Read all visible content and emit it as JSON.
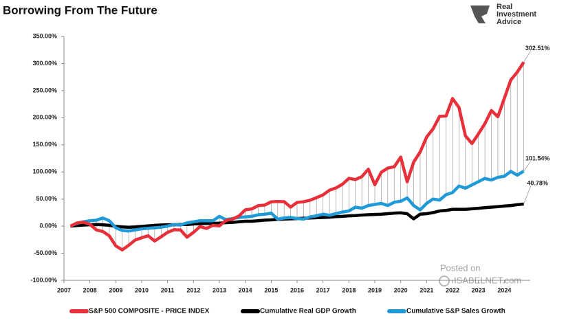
{
  "chart_data": {
    "type": "line",
    "title": "Borrowing From The Future",
    "logo_text": [
      "Real",
      "Investment",
      "Advice"
    ],
    "watermark": [
      "Posted on",
      "ISABELNET.com"
    ],
    "x": [
      2007.25,
      2007.5,
      2007.75,
      2008,
      2008.25,
      2008.5,
      2008.75,
      2009,
      2009.25,
      2009.5,
      2009.75,
      2010,
      2010.25,
      2010.5,
      2010.75,
      2011,
      2011.25,
      2011.5,
      2011.75,
      2012,
      2012.25,
      2012.5,
      2012.75,
      2013,
      2013.25,
      2013.5,
      2013.75,
      2014,
      2014.25,
      2014.5,
      2014.75,
      2015,
      2015.25,
      2015.5,
      2015.75,
      2016,
      2016.25,
      2016.5,
      2016.75,
      2017,
      2017.25,
      2017.5,
      2017.75,
      2018,
      2018.25,
      2018.5,
      2018.75,
      2019,
      2019.25,
      2019.5,
      2019.75,
      2020,
      2020.25,
      2020.5,
      2020.75,
      2021,
      2021.25,
      2021.5,
      2021.75,
      2022,
      2022.25,
      2022.5,
      2022.75,
      2023,
      2023.25,
      2023.5,
      2023.75,
      2024,
      2024.25,
      2024.5,
      2024.75
    ],
    "series": [
      {
        "name": "S&P 500 COMPOSITE - PRICE INDEX",
        "color": "#e8303a",
        "values": [
          0,
          5.8,
          7.4,
          3.3,
          -6.9,
          -9.9,
          -17.9,
          -36.4,
          -43.8,
          -35.3,
          -25.6,
          -21.5,
          -17.7,
          -27.4,
          -19.7,
          -11.5,
          -6.7,
          -7.0,
          -20.4,
          -11.5,
          -0.9,
          -4.2,
          1.4,
          0.4,
          10.4,
          13.0,
          18.4,
          30.1,
          31.7,
          37.9,
          38.8,
          44.9,
          45.5,
          45.2,
          35.1,
          43.8,
          45.0,
          47.7,
          52.6,
          57.6,
          66.3,
          70.5,
          77.3,
          88.2,
          85.9,
          91.3,
          105.1,
          76.4,
          99.4,
          107.0,
          109.5,
          127.4,
          81.9,
          118.2,
          136.7,
          164.3,
          179.6,
          202.5,
          203.2,
          235.4,
          218.8,
          166.4,
          152.4,
          170.2,
          189.2,
          213.2,
          201.8,
          235.7,
          269.7,
          284.2,
          302.51
        ],
        "value_labels": [
          null,
          null,
          null,
          null,
          null,
          null,
          null,
          null,
          null,
          null,
          null,
          null,
          null,
          null,
          null,
          null,
          null,
          null,
          null,
          null,
          null,
          null,
          null,
          null,
          null,
          null,
          null,
          null,
          null,
          null,
          null,
          null,
          null,
          null,
          null,
          null,
          null,
          null,
          null,
          null,
          null,
          null,
          null,
          null,
          null,
          null,
          null,
          null,
          null,
          null,
          null,
          null,
          null,
          null,
          null,
          null,
          null,
          null,
          null,
          null,
          null,
          null,
          null,
          null,
          null,
          null,
          null,
          null,
          null,
          null,
          "302.51%"
        ]
      },
      {
        "name": "Cumulative Real GDP Growth",
        "color": "#000000",
        "values": [
          0,
          1,
          2,
          2.5,
          3,
          2.5,
          1.5,
          -0.5,
          -1.5,
          -2,
          -1.5,
          -0.5,
          0.5,
          1.5,
          2,
          2.5,
          2.5,
          3,
          3,
          4,
          4.5,
          5,
          5,
          5.5,
          6.5,
          7,
          8,
          9,
          9,
          10,
          11,
          11.5,
          12.5,
          13,
          13.5,
          14,
          14.5,
          15,
          15.5,
          16,
          16.5,
          17.5,
          18,
          19,
          19.5,
          20.5,
          21,
          21.5,
          22,
          23,
          24,
          24.5,
          23,
          13.5,
          22,
          23,
          25,
          28,
          29,
          31,
          31,
          31,
          32,
          33,
          34,
          35,
          36,
          37,
          38,
          39.5,
          40.78
        ],
        "value_labels": [
          null,
          null,
          null,
          null,
          null,
          null,
          null,
          null,
          null,
          null,
          null,
          null,
          null,
          null,
          null,
          null,
          null,
          null,
          null,
          null,
          null,
          null,
          null,
          null,
          null,
          null,
          null,
          null,
          null,
          null,
          null,
          null,
          null,
          null,
          null,
          null,
          null,
          null,
          null,
          null,
          null,
          null,
          null,
          null,
          null,
          null,
          null,
          null,
          null,
          null,
          null,
          null,
          null,
          null,
          null,
          null,
          null,
          null,
          null,
          null,
          null,
          null,
          null,
          null,
          null,
          null,
          null,
          null,
          null,
          null,
          "40.78%"
        ]
      },
      {
        "name": "Cumulative S&P Sales Growth",
        "color": "#1f9ad6",
        "values": [
          0,
          5,
          8,
          10,
          11,
          15,
          10,
          -3,
          -8,
          -9,
          -7,
          -5,
          -4,
          -3,
          -2,
          0,
          3,
          2,
          6,
          8,
          10,
          10,
          10,
          18,
          12,
          14,
          16,
          17,
          18,
          21,
          22,
          24,
          13,
          15,
          16,
          14,
          13,
          17,
          19,
          22,
          20,
          23,
          26,
          28,
          35,
          33,
          38,
          40,
          42,
          38,
          44,
          46,
          52,
          38,
          30,
          42,
          50,
          48,
          58,
          62,
          74,
          70,
          76,
          82,
          88,
          85,
          90,
          92,
          101,
          94,
          101.54
        ],
        "value_labels": [
          null,
          null,
          null,
          null,
          null,
          null,
          null,
          null,
          null,
          null,
          null,
          null,
          null,
          null,
          null,
          null,
          null,
          null,
          null,
          null,
          null,
          null,
          null,
          null,
          null,
          null,
          null,
          null,
          null,
          null,
          null,
          null,
          null,
          null,
          null,
          null,
          null,
          null,
          null,
          null,
          null,
          null,
          null,
          null,
          null,
          null,
          null,
          null,
          null,
          null,
          null,
          null,
          null,
          null,
          null,
          null,
          null,
          null,
          null,
          null,
          null,
          null,
          null,
          null,
          null,
          null,
          null,
          null,
          null,
          null,
          "101.54%"
        ]
      }
    ],
    "xlim": [
      2007,
      2025
    ],
    "xticks": [
      2007,
      2008,
      2009,
      2010,
      2011,
      2012,
      2013,
      2014,
      2015,
      2016,
      2017,
      2018,
      2019,
      2020,
      2021,
      2022,
      2023,
      2024
    ],
    "ylim": [
      -100,
      350
    ],
    "yticks": [
      {
        "value": -100,
        "label": "-100.00%"
      },
      {
        "value": -50,
        "label": "-50.00%"
      },
      {
        "value": 0,
        "label": "0.00%"
      },
      {
        "value": 50,
        "label": "50.00%"
      },
      {
        "value": 100,
        "label": "100.00%"
      },
      {
        "value": 150,
        "label": "150.00%"
      },
      {
        "value": 200,
        "label": "200.00%"
      },
      {
        "value": 250,
        "label": "250.00%"
      },
      {
        "value": 300,
        "label": "300.00%"
      },
      {
        "value": 350,
        "label": "350.00%"
      }
    ],
    "grid": false,
    "drop_lines": true,
    "legend_position": "bottom"
  }
}
